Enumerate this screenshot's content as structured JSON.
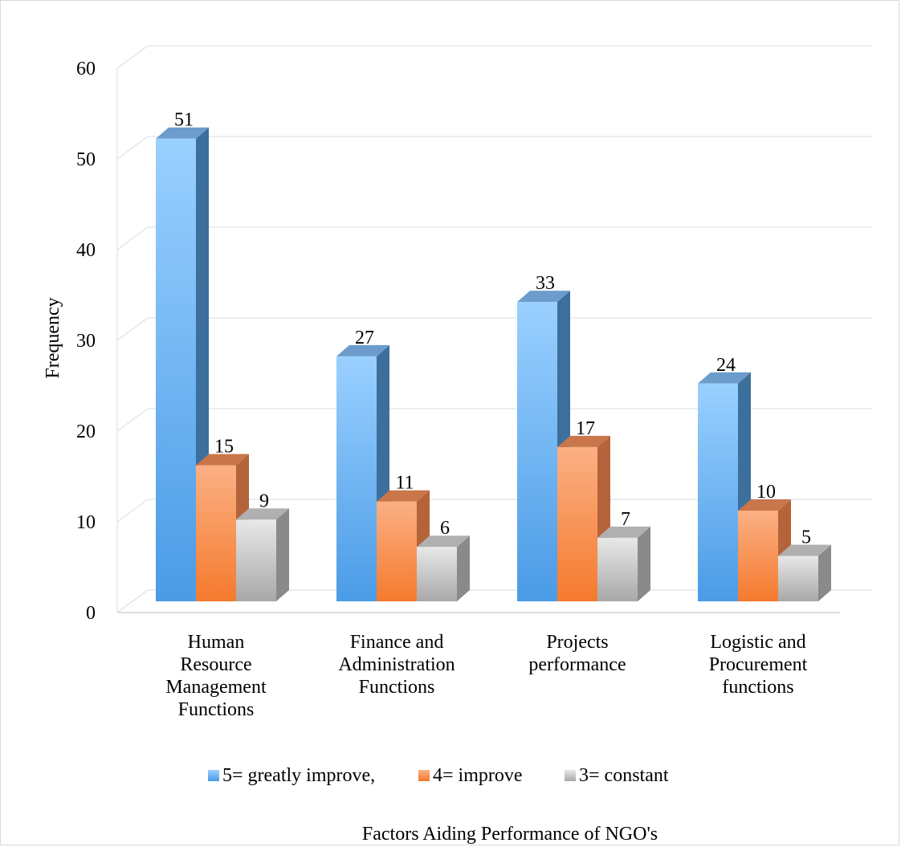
{
  "chart_data": {
    "type": "bar",
    "categories": [
      [
        "Human",
        "Resource",
        "Management",
        "Functions"
      ],
      [
        "Finance and",
        "Administration",
        "Functions"
      ],
      [
        "Projects",
        "performance"
      ],
      [
        "Logistic and",
        "Procurement",
        "functions"
      ]
    ],
    "series": [
      {
        "name": "5= greatly improve,",
        "values": [
          51,
          27,
          33,
          24
        ],
        "color": "#5aa9f0"
      },
      {
        "name": "4= improve",
        "values": [
          15,
          11,
          17,
          10
        ],
        "color": "#f5884a"
      },
      {
        "name": "3= constant",
        "values": [
          9,
          6,
          7,
          5
        ],
        "color": "#c9c9c9"
      }
    ],
    "ylabel": "Frequency",
    "xlabel": "Factors Aiding Performance of NGO's",
    "ylim": [
      0,
      60
    ],
    "yticks": [
      0,
      10,
      20,
      30,
      40,
      50,
      60
    ],
    "grid": true,
    "legend_position": "bottom",
    "style": "3d-clustered-column"
  }
}
